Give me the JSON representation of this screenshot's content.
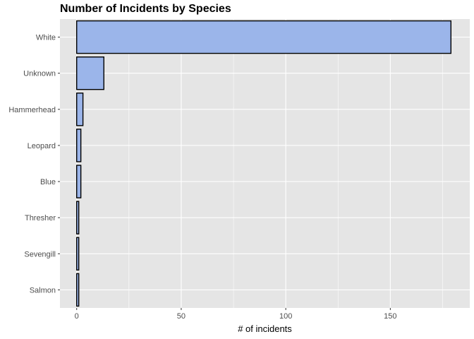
{
  "chart_data": {
    "type": "bar",
    "orientation": "horizontal",
    "title": "Number of Incidents by Species",
    "xlabel": "# of incidents",
    "ylabel": "",
    "categories": [
      "White",
      "Unknown",
      "Hammerhead",
      "Leopard",
      "Blue",
      "Thresher",
      "Sevengill",
      "Salmon"
    ],
    "values": [
      179,
      13,
      3,
      2,
      2,
      1,
      1,
      1
    ],
    "xlim": [
      -8,
      188
    ],
    "xticks": [
      0,
      50,
      100,
      150
    ],
    "xtick_labels": [
      "0",
      "50",
      "100",
      "150"
    ],
    "grid": true,
    "legend": "none",
    "colors": {
      "bar_fill": "#9bb5ea",
      "bar_outline": "#000000",
      "panel_background": "#e5e5e5",
      "grid": "#ffffff"
    }
  }
}
